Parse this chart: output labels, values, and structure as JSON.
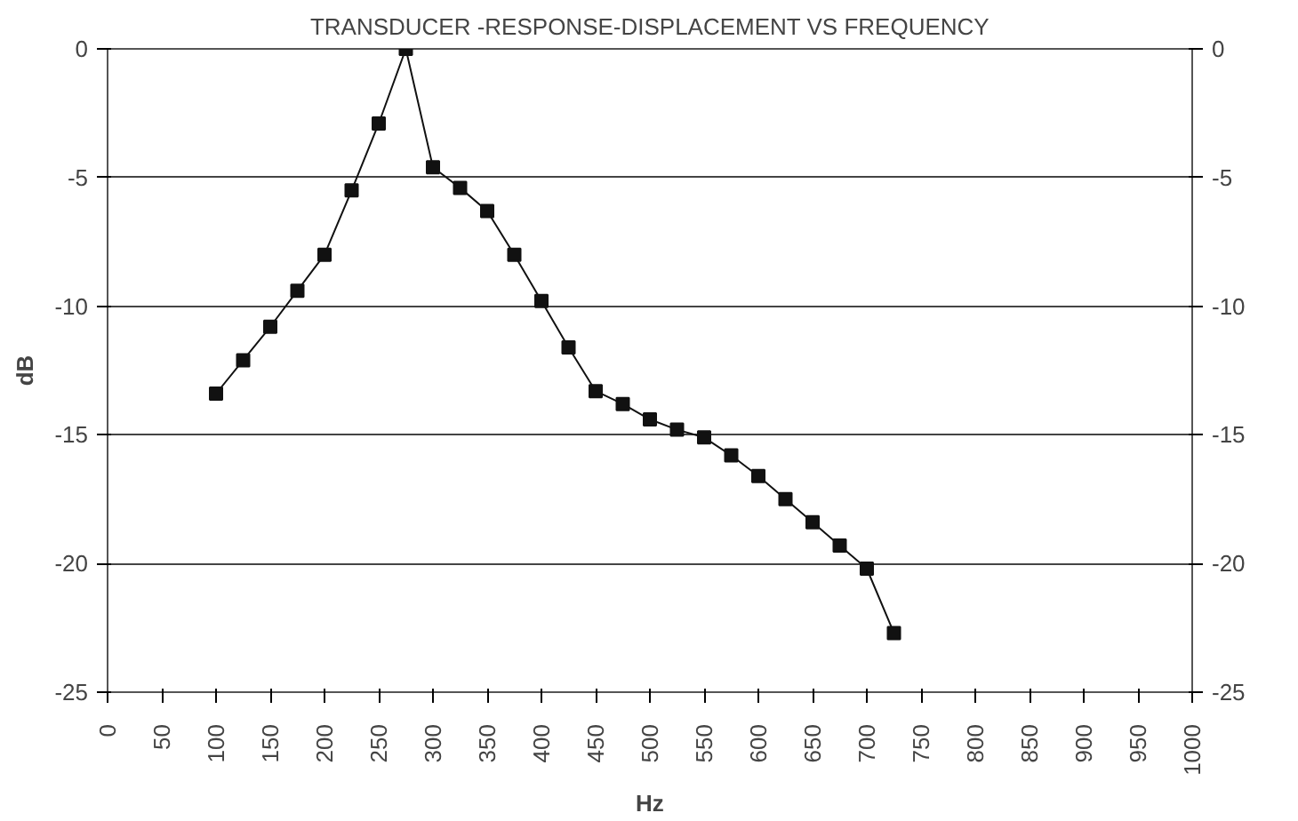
{
  "chart_data": {
    "type": "line",
    "title": "TRANSDUCER -RESPONSE-DISPLACEMENT VS FREQUENCY",
    "xlabel": "Hz",
    "ylabel": "dB",
    "x": [
      100,
      125,
      150,
      175,
      200,
      225,
      250,
      275,
      300,
      325,
      350,
      375,
      400,
      425,
      450,
      475,
      500,
      525,
      550,
      575,
      600,
      625,
      650,
      675,
      700,
      725
    ],
    "series": [
      {
        "color": "#111111",
        "values": [
          -13.4,
          -12.1,
          -10.8,
          -9.4,
          -8.0,
          -5.5,
          -2.9,
          0,
          -4.6,
          -5.4,
          -6.3,
          -8.0,
          -9.8,
          -11.6,
          -13.3,
          -13.8,
          -14.4,
          -14.8,
          -15.1,
          -15.8,
          -16.6,
          -17.5,
          -18.4,
          -19.3,
          -20.2,
          -22.7
        ]
      }
    ],
    "xlim": [
      0,
      1000
    ],
    "xticks": [
      0,
      50,
      100,
      150,
      200,
      250,
      300,
      350,
      400,
      450,
      500,
      550,
      600,
      650,
      700,
      750,
      800,
      850,
      900,
      950,
      1000
    ],
    "ylim": [
      -25,
      0
    ],
    "yticks": [
      -25,
      -20,
      -15,
      -10,
      -5,
      0
    ],
    "y2lim": [
      -25,
      0
    ],
    "y2ticks": [
      -25,
      -20,
      -15,
      -10,
      -5,
      0
    ],
    "grid": "y",
    "marker": "square",
    "line_style": "solid"
  }
}
